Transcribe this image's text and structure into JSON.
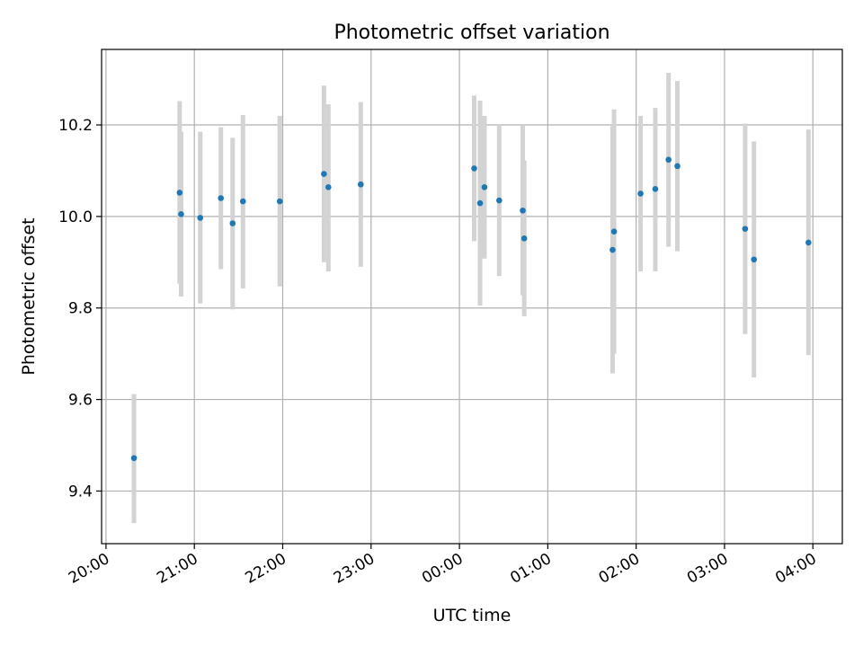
{
  "chart_data": {
    "type": "scatter",
    "title": "Photometric offset variation",
    "xlabel": "UTC time",
    "ylabel": "Photometric offset",
    "xlim": [
      "19:57",
      "04:20"
    ],
    "ylim": [
      9.285,
      10.365
    ],
    "x_ticks": [
      "20:00",
      "21:00",
      "22:00",
      "23:00",
      "00:00",
      "01:00",
      "02:00",
      "03:00",
      "04:00"
    ],
    "y_ticks": [
      "9.4",
      "9.6",
      "9.8",
      "10.0",
      "10.2"
    ],
    "y_tick_values": [
      9.4,
      9.6,
      9.8,
      10.0,
      10.2
    ],
    "grid": true,
    "colors": {
      "points": "#1f77b4",
      "errorbars": "#d3d3d3",
      "grid": "#b0b0b0"
    },
    "points": [
      {
        "x": "20:19",
        "y": 9.472,
        "ylow": 9.33,
        "yhigh": 9.612
      },
      {
        "x": "20:50",
        "y": 10.052,
        "ylow": 9.853,
        "yhigh": 10.252
      },
      {
        "x": "20:51",
        "y": 10.005,
        "ylow": 9.825,
        "yhigh": 10.185
      },
      {
        "x": "21:04",
        "y": 9.997,
        "ylow": 9.81,
        "yhigh": 10.185
      },
      {
        "x": "21:18",
        "y": 10.04,
        "ylow": 9.885,
        "yhigh": 10.195
      },
      {
        "x": "21:26",
        "y": 9.985,
        "ylow": 9.797,
        "yhigh": 10.172
      },
      {
        "x": "21:33",
        "y": 10.033,
        "ylow": 9.843,
        "yhigh": 10.222
      },
      {
        "x": "21:58",
        "y": 10.033,
        "ylow": 9.847,
        "yhigh": 10.22
      },
      {
        "x": "22:28",
        "y": 10.093,
        "ylow": 9.9,
        "yhigh": 10.286
      },
      {
        "x": "22:31",
        "y": 10.064,
        "ylow": 9.88,
        "yhigh": 10.245
      },
      {
        "x": "22:53",
        "y": 10.07,
        "ylow": 9.89,
        "yhigh": 10.25
      },
      {
        "x": "00:10",
        "y": 10.105,
        "ylow": 9.946,
        "yhigh": 10.264
      },
      {
        "x": "00:14",
        "y": 10.029,
        "ylow": 9.805,
        "yhigh": 10.253
      },
      {
        "x": "00:17",
        "y": 10.064,
        "ylow": 9.908,
        "yhigh": 10.22
      },
      {
        "x": "00:27",
        "y": 10.035,
        "ylow": 9.87,
        "yhigh": 10.2
      },
      {
        "x": "00:43",
        "y": 10.013,
        "ylow": 9.828,
        "yhigh": 10.198
      },
      {
        "x": "00:44",
        "y": 9.952,
        "ylow": 9.782,
        "yhigh": 10.122
      },
      {
        "x": "01:44",
        "y": 9.927,
        "ylow": 9.657,
        "yhigh": 10.197
      },
      {
        "x": "01:45",
        "y": 9.967,
        "ylow": 9.7,
        "yhigh": 10.234
      },
      {
        "x": "02:03",
        "y": 10.05,
        "ylow": 9.88,
        "yhigh": 10.22
      },
      {
        "x": "02:13",
        "y": 10.06,
        "ylow": 9.88,
        "yhigh": 10.237
      },
      {
        "x": "02:22",
        "y": 10.124,
        "ylow": 9.934,
        "yhigh": 10.314
      },
      {
        "x": "02:28",
        "y": 10.11,
        "ylow": 9.924,
        "yhigh": 10.296
      },
      {
        "x": "03:14",
        "y": 9.973,
        "ylow": 9.743,
        "yhigh": 10.203
      },
      {
        "x": "03:20",
        "y": 9.906,
        "ylow": 9.648,
        "yhigh": 10.164
      },
      {
        "x": "03:57",
        "y": 9.943,
        "ylow": 9.697,
        "yhigh": 10.19
      }
    ]
  }
}
